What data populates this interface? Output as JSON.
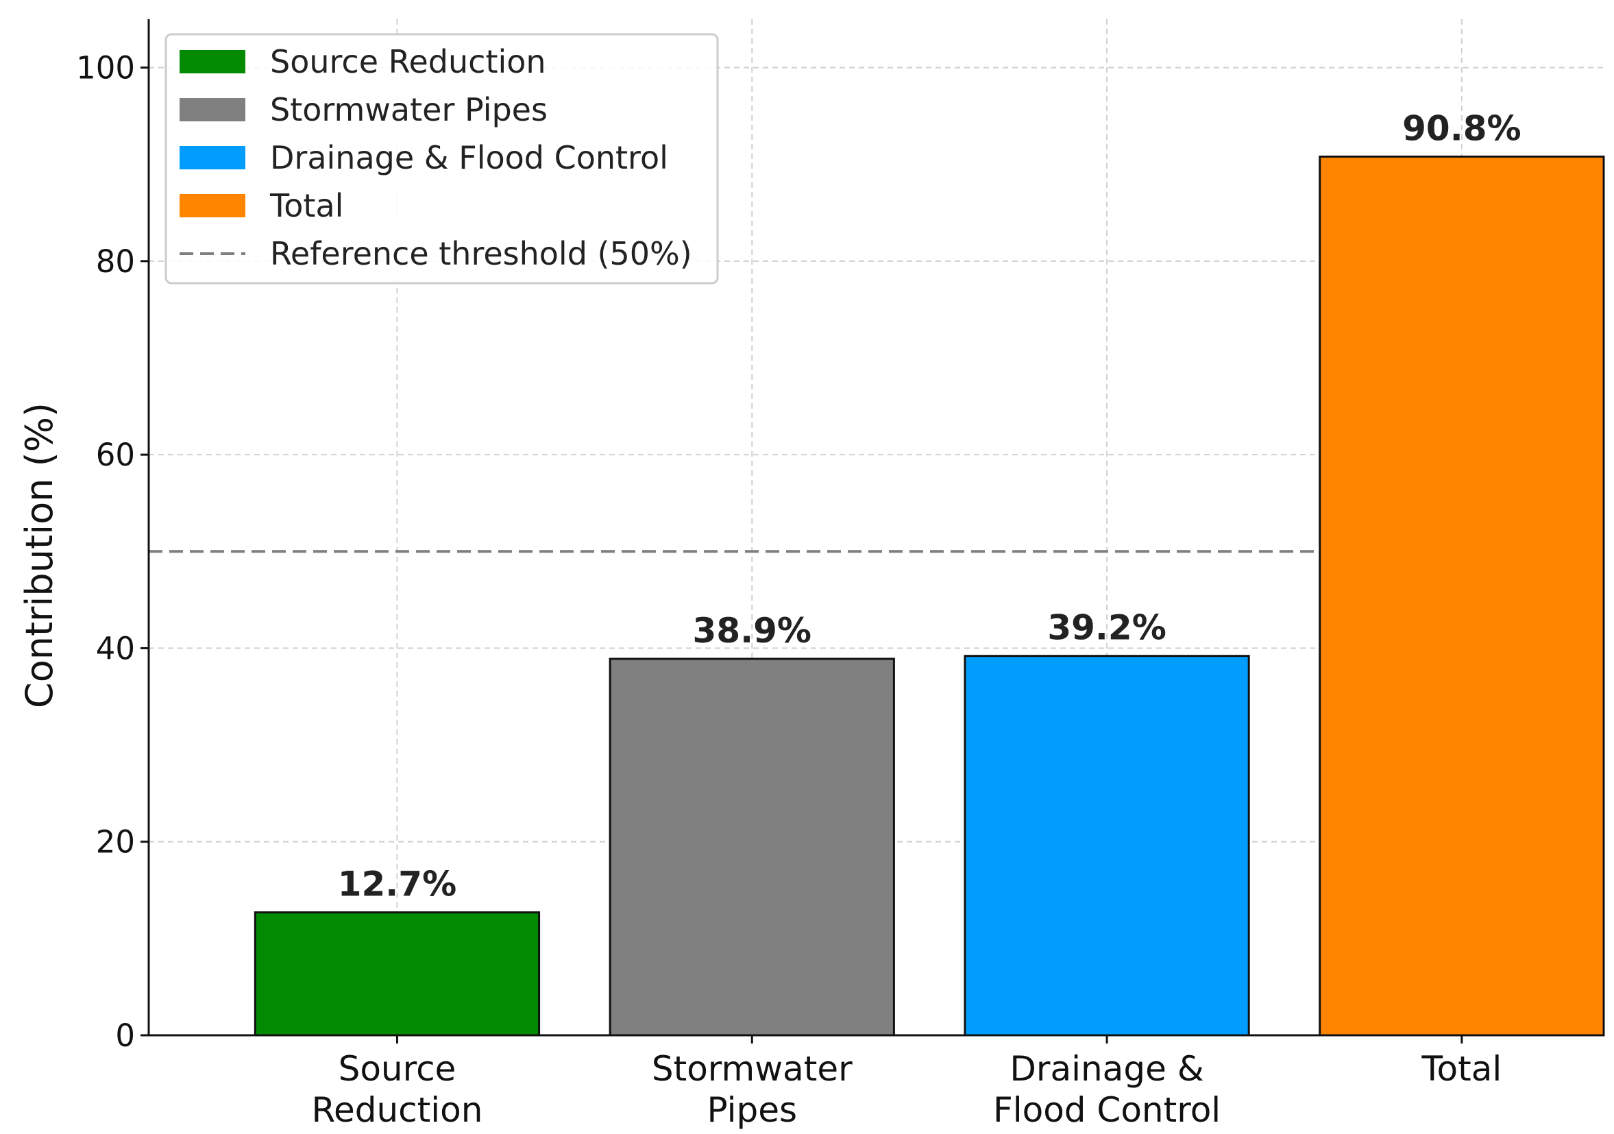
{
  "chart_data": {
    "type": "bar",
    "title": "",
    "xlabel": "",
    "ylabel": "Contribution (%)",
    "ylim": [
      0,
      105
    ],
    "yticks": [
      0,
      20,
      40,
      60,
      80,
      100
    ],
    "grid": true,
    "categories": [
      [
        "Source",
        "Reduction"
      ],
      [
        "Stormwater",
        "Pipes"
      ],
      [
        "Drainage &",
        "Flood Control"
      ],
      [
        "Total"
      ]
    ],
    "values": [
      12.7,
      38.9,
      39.2,
      90.8
    ],
    "data_labels": [
      "12.7%",
      "38.9%",
      "39.2%",
      "90.8%"
    ],
    "colors": [
      "#038a03",
      "#808080",
      "#009dff",
      "#ff8400"
    ],
    "reference_line": {
      "value": 50,
      "label": "Reference threshold (50%)",
      "color": "#7f7f7f",
      "style": "dashed"
    },
    "legend": {
      "placement": "top-left",
      "entries": [
        {
          "label": "Source Reduction",
          "color": "#038a03",
          "kind": "patch"
        },
        {
          "label": "Stormwater Pipes",
          "color": "#808080",
          "kind": "patch"
        },
        {
          "label": "Drainage & Flood Control",
          "color": "#009dff",
          "kind": "patch"
        },
        {
          "label": "Total",
          "color": "#ff8400",
          "kind": "patch"
        },
        {
          "label": "Reference threshold (50%)",
          "color": "#7f7f7f",
          "kind": "dashed-line"
        }
      ]
    }
  }
}
